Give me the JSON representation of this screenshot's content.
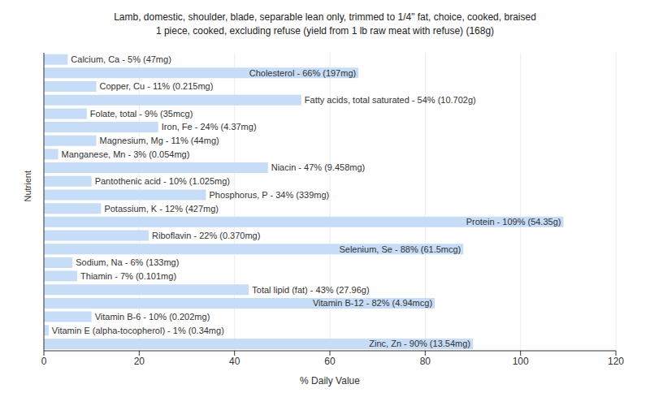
{
  "chart_data": {
    "type": "bar",
    "orientation": "horizontal",
    "title": "Lamb, domestic, shoulder, blade, separable lean only, trimmed to 1/4\" fat, choice, cooked, braised",
    "subtitle": "1 piece, cooked, excluding refuse (yield from 1 lb raw meat with refuse) (168g)",
    "x_label": "% Daily Value",
    "y_label": "Nutrient",
    "categories": [
      null,
      null,
      null,
      null,
      null,
      null,
      null,
      null,
      null,
      null,
      null,
      null,
      null,
      null,
      null,
      null,
      null,
      null,
      null,
      null,
      null,
      null
    ],
    "values": [
      5,
      66,
      11,
      54,
      9,
      24,
      11,
      3,
      47,
      10,
      34,
      12,
      109,
      22,
      88,
      6,
      7,
      43,
      82,
      10,
      1,
      90
    ],
    "value_labels": [
      "Calcium, Ca - 5% (47mg)",
      "Cholesterol - 66% (197mg)",
      "Copper, Cu - 11% (0.215mg)",
      "Fatty acids, total saturated - 54% (10.702g)",
      "Folate, total - 9% (35mcg)",
      "Iron, Fe - 24% (4.37mg)",
      "Magnesium, Mg - 11% (44mg)",
      "Manganese, Mn - 3% (0.054mg)",
      "Niacin - 47% (9.458mg)",
      "Pantothenic acid - 10% (1.025mg)",
      "Phosphorus, P - 34% (339mg)",
      "Potassium, K - 12% (427mg)",
      "Protein - 109% (54.35g)",
      "Riboflavin - 22% (0.370mg)",
      "Selenium, Se - 88% (61.5mcg)",
      "Sodium, Na - 6% (133mg)",
      "Thiamin - 7% (0.101mg)",
      "Total lipid (fat) - 43% (27.96g)",
      "Vitamin B-12 - 82% (4.94mcg)",
      "Vitamin B-6 - 10% (0.202mg)",
      "Vitamin E (alpha-tocopherol) - 1% (0.34mg)",
      "Zinc, Zn - 90% (13.54mg)"
    ],
    "color": "#c6dcf7",
    "xlim": [
      0,
      120
    ],
    "xticks": [
      0,
      20,
      40,
      60,
      80,
      100,
      120
    ],
    "grid": true,
    "data_labels": true,
    "tick_labels": "x"
  }
}
